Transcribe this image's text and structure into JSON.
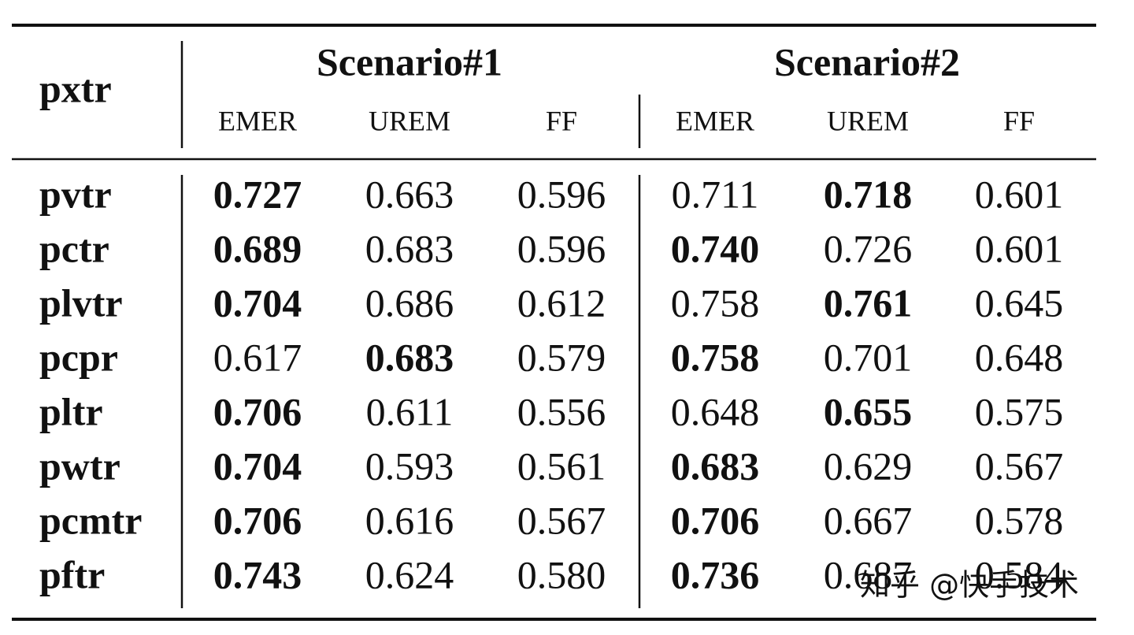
{
  "table": {
    "corner": "pxtr",
    "groups": [
      "Scenario#1",
      "Scenario#2"
    ],
    "columns": [
      "EMER",
      "UREM",
      "FF",
      "EMER",
      "UREM",
      "FF"
    ],
    "rows": [
      {
        "label": "pvtr",
        "cells": [
          "0.727",
          "0.663",
          "0.596",
          "0.711",
          "0.718",
          "0.601"
        ],
        "bold": [
          true,
          false,
          false,
          false,
          true,
          false
        ]
      },
      {
        "label": "pctr",
        "cells": [
          "0.689",
          "0.683",
          "0.596",
          "0.740",
          "0.726",
          "0.601"
        ],
        "bold": [
          true,
          false,
          false,
          true,
          false,
          false
        ]
      },
      {
        "label": "plvtr",
        "cells": [
          "0.704",
          "0.686",
          "0.612",
          "0.758",
          "0.761",
          "0.645"
        ],
        "bold": [
          true,
          false,
          false,
          false,
          true,
          false
        ]
      },
      {
        "label": "pcpr",
        "cells": [
          "0.617",
          "0.683",
          "0.579",
          "0.758",
          "0.701",
          "0.648"
        ],
        "bold": [
          false,
          true,
          false,
          true,
          false,
          false
        ]
      },
      {
        "label": "pltr",
        "cells": [
          "0.706",
          "0.611",
          "0.556",
          "0.648",
          "0.655",
          "0.575"
        ],
        "bold": [
          true,
          false,
          false,
          false,
          true,
          false
        ]
      },
      {
        "label": "pwtr",
        "cells": [
          "0.704",
          "0.593",
          "0.561",
          "0.683",
          "0.629",
          "0.567"
        ],
        "bold": [
          true,
          false,
          false,
          true,
          false,
          false
        ]
      },
      {
        "label": "pcmtr",
        "cells": [
          "0.706",
          "0.616",
          "0.567",
          "0.706",
          "0.667",
          "0.578"
        ],
        "bold": [
          true,
          false,
          false,
          true,
          false,
          false
        ]
      },
      {
        "label": "pftr",
        "cells": [
          "0.743",
          "0.624",
          "0.580",
          "0.736",
          "0.687",
          "0.584"
        ],
        "bold": [
          true,
          false,
          false,
          true,
          false,
          false
        ]
      }
    ]
  },
  "watermark": "知乎 @快手技术"
}
